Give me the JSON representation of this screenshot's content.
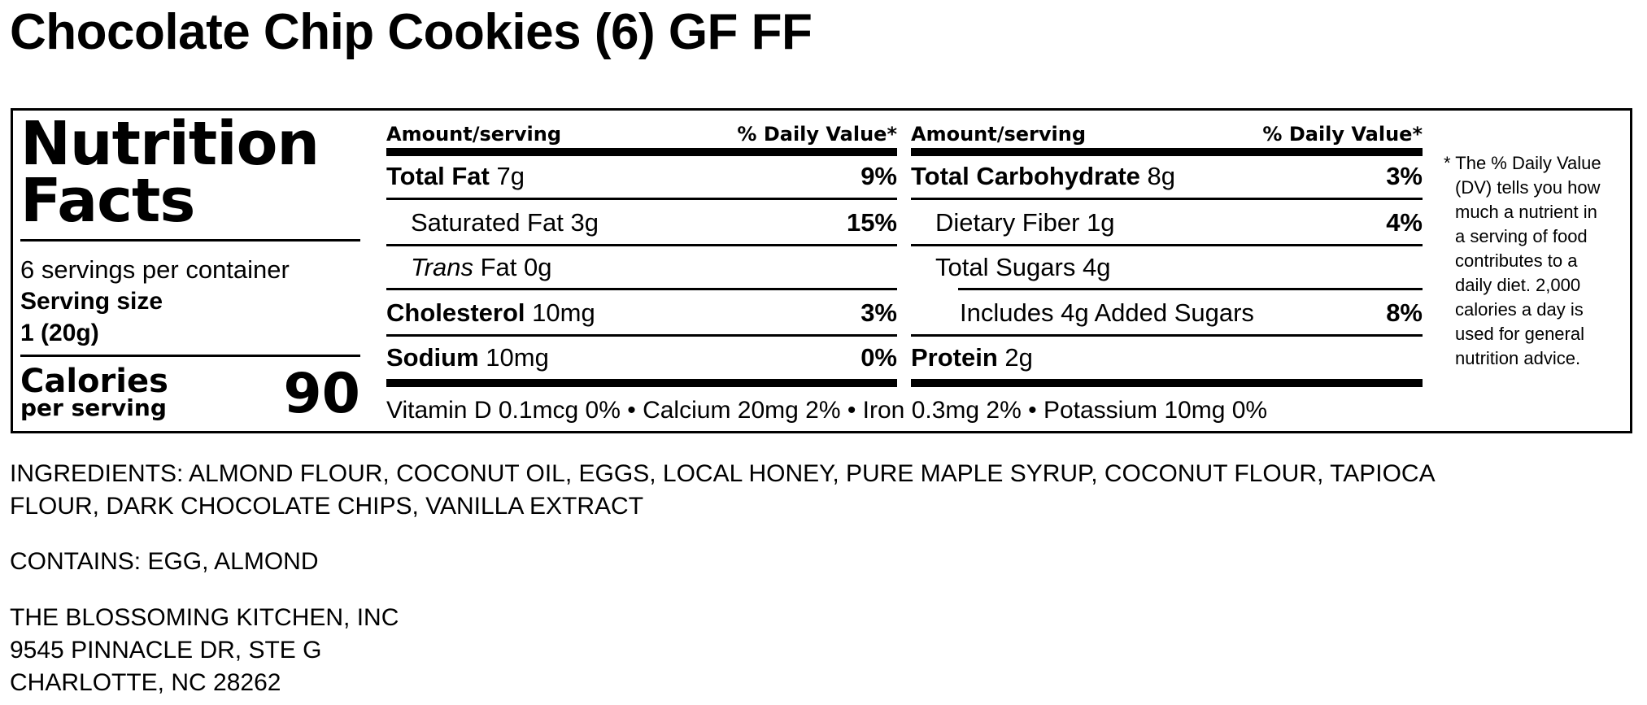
{
  "title": "Chocolate Chip Cookies (6) GF FF",
  "label": {
    "heading_line1": "Nutrition",
    "heading_line2": "Facts",
    "servings_per_container": "6 servings per container",
    "serving_size_label": "Serving size",
    "serving_size_value": "1 (20g)",
    "calories_label": "Calories",
    "calories_sublabel": "per serving",
    "calories_value": "90",
    "amount_header": "Amount/serving",
    "dv_header": "% Daily Value*",
    "left_rows": [
      {
        "name": "Total Fat",
        "amount": "7g",
        "dv": "9%"
      },
      {
        "name": "Saturated Fat",
        "amount": "3g",
        "dv": "15%"
      },
      {
        "name": "Trans",
        "amount": "Fat 0g",
        "dv": ""
      },
      {
        "name": "Cholesterol",
        "amount": "10mg",
        "dv": "3%"
      },
      {
        "name": "Sodium",
        "amount": "10mg",
        "dv": "0%"
      }
    ],
    "right_rows": [
      {
        "name": "Total Carbohydrate",
        "amount": "8g",
        "dv": "3%"
      },
      {
        "name": "Dietary Fiber",
        "amount": "1g",
        "dv": "4%"
      },
      {
        "name": "Total Sugars",
        "amount": "4g",
        "dv": ""
      },
      {
        "name": "Includes 4g Added Sugars",
        "amount": "",
        "dv": "8%"
      },
      {
        "name": "Protein",
        "amount": "2g",
        "dv": ""
      }
    ],
    "vitamins": "Vitamin D 0.1mcg 0% • Calcium 20mg 2% • Iron 0.3mg 2% • Potassium 10mg 0%",
    "footnote": [
      "* The % Daily Value",
      "(DV) tells you how",
      "much a nutrient in",
      "a serving of food",
      "contributes to a",
      "daily diet. 2,000",
      "calories a day is",
      "used for general",
      "nutrition advice."
    ]
  },
  "ingredients": [
    "INGREDIENTS: ALMOND FLOUR, COCONUT OIL, EGGS, LOCAL HONEY, PURE MAPLE SYRUP, COCONUT FLOUR, TAPIOCA",
    "FLOUR, DARK CHOCOLATE CHIPS, VANILLA EXTRACT"
  ],
  "contains": "CONTAINS: EGG, ALMOND",
  "address": [
    "THE BLOSSOMING KITCHEN, INC",
    "9545 PINNACLE DR, STE G",
    "CHARLOTTE, NC 28262"
  ]
}
